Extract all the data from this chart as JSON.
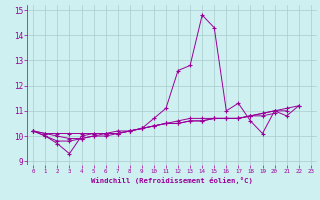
{
  "xlabel": "Windchill (Refroidissement éolien,°C)",
  "background_color": "#cff0f0",
  "grid_color": "#aacccc",
  "line_color": "#990099",
  "xlim": [
    -0.5,
    23.5
  ],
  "ylim": [
    8.85,
    15.2
  ],
  "yticks": [
    9,
    10,
    11,
    12,
    13,
    14,
    15
  ],
  "xticks": [
    0,
    1,
    2,
    3,
    4,
    5,
    6,
    7,
    8,
    9,
    10,
    11,
    12,
    13,
    14,
    15,
    16,
    17,
    18,
    19,
    20,
    21,
    22,
    23
  ],
  "series": [
    [
      10.2,
      10.0,
      9.7,
      9.3,
      10.0,
      10.1,
      10.1,
      10.1,
      10.2,
      10.3,
      10.7,
      11.1,
      12.6,
      12.8,
      14.8,
      14.3,
      11.0,
      11.3,
      10.6,
      10.1,
      11.0,
      10.8,
      11.2,
      null
    ],
    [
      10.2,
      10.0,
      9.8,
      9.8,
      9.9,
      10.0,
      10.1,
      10.1,
      10.2,
      10.3,
      10.4,
      10.5,
      10.6,
      10.7,
      10.7,
      10.7,
      10.7,
      10.7,
      10.8,
      10.8,
      10.9,
      null,
      null,
      null
    ],
    [
      10.2,
      10.1,
      10.0,
      9.9,
      9.9,
      10.0,
      10.0,
      10.1,
      10.2,
      10.3,
      10.4,
      10.5,
      10.5,
      10.6,
      10.6,
      10.7,
      10.7,
      10.7,
      10.8,
      10.9,
      11.0,
      11.0,
      null,
      null
    ],
    [
      10.2,
      10.1,
      10.1,
      10.1,
      10.1,
      10.1,
      10.1,
      10.2,
      10.2,
      10.3,
      10.4,
      10.5,
      10.5,
      10.6,
      10.6,
      10.7,
      10.7,
      10.7,
      10.8,
      10.9,
      11.0,
      11.1,
      11.2,
      null
    ]
  ]
}
